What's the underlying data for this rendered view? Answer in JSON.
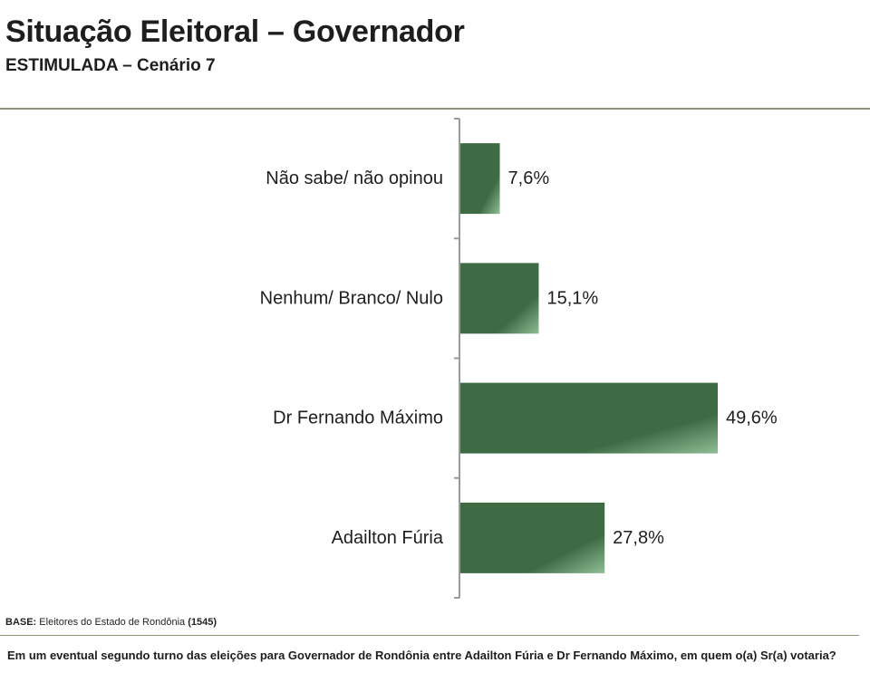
{
  "header": {
    "title": "Situação Eleitoral – Governador",
    "subtitle": "ESTIMULADA – Cenário 7"
  },
  "footer": {
    "base_label": "BASE:",
    "base_text": "Eleitores do Estado de Rondônia",
    "base_count": "(1545)",
    "question": "Em um eventual segundo turno das eleições para Governador de Rondônia entre Adailton Fúria e Dr Fernando Máximo, em quem o(a) Sr(a) votaria?"
  },
  "colors": {
    "bar_dark": "#3f6b44",
    "bar_light": "#8fbf96",
    "axis": "#9a9a9a"
  },
  "chart_data": {
    "type": "bar",
    "orientation": "horizontal",
    "title": "Situação Eleitoral – Governador",
    "subtitle": "ESTIMULADA – Cenário 7",
    "categories": [
      "Não sabe/ não opinou",
      "Nenhum/ Branco/ Nulo",
      "Dr Fernando Máximo",
      "Adailton Fúria"
    ],
    "values": [
      7.6,
      15.1,
      49.6,
      27.8
    ],
    "value_labels": [
      "7,6%",
      "15,1%",
      "49,6%",
      "27,8%"
    ],
    "unit": "%",
    "xlim": [
      0,
      100
    ],
    "xlabel": "",
    "ylabel": "",
    "grid": false,
    "legend": "none"
  }
}
